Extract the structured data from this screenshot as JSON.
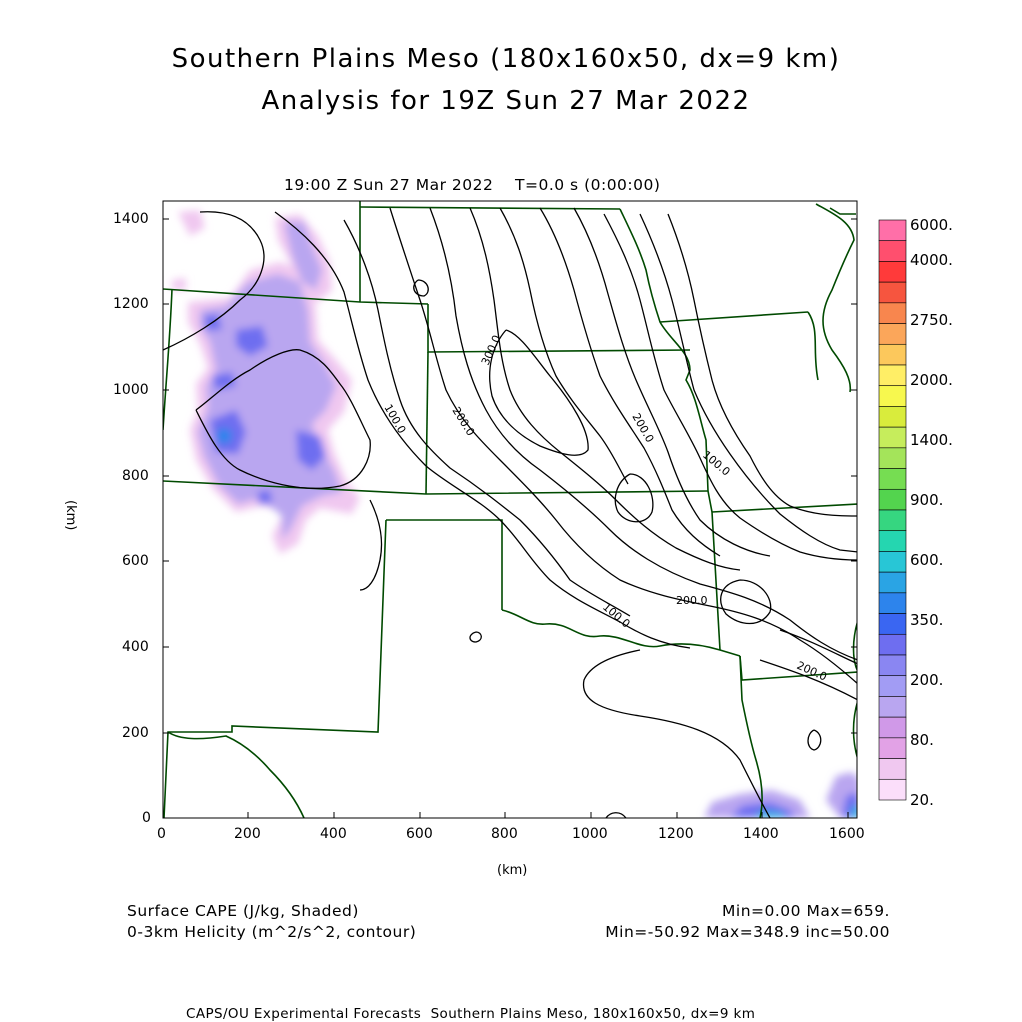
{
  "header": {
    "title_line1": "Southern Plains Meso (180x160x50, dx=9 km)",
    "title_line2": "Analysis for 19Z Sun 27 Mar 2022",
    "valid_time": "19:00 Z Sun 27 Mar 2022    T=0.0 s (0:00:00)"
  },
  "axes": {
    "x_label": "(km)",
    "y_label": "(km)",
    "x_ticks": [
      "0",
      "200",
      "400",
      "600",
      "800",
      "1000",
      "1200",
      "1400",
      "1600"
    ],
    "y_ticks": [
      "0",
      "200",
      "400",
      "600",
      "800",
      "1000",
      "1200",
      "1400"
    ],
    "x_range_km": [
      0,
      1620
    ],
    "y_range_km": [
      0,
      1440
    ]
  },
  "colorbar": {
    "labels": [
      "6000.",
      "4000.",
      "2750.",
      "2000.",
      "1400.",
      "900.",
      "600.",
      "350.",
      "200.",
      "80.",
      "20."
    ],
    "colors_top_to_bottom": [
      "#ff6fa8",
      "#ff4f6e",
      "#ff3a3a",
      "#f6553f",
      "#f8864e",
      "#fba65a",
      "#fcc85c",
      "#ffee66",
      "#f7f84e",
      "#d9ec3c",
      "#c6ed5c",
      "#a4e45a",
      "#76dd52",
      "#53d44e",
      "#36d680",
      "#25d6b0",
      "#28c6d6",
      "#2aa4e4",
      "#2d84ec",
      "#3a66f2",
      "#6e6ef0",
      "#8a86f2",
      "#a29cf4",
      "#b9a6f0",
      "#d099e8",
      "#e2a2e6",
      "#f0c8f0",
      "#fbdefa"
    ]
  },
  "footer": {
    "field1": "Surface CAPE (J/kg, Shaded)",
    "field2": "0-3km Helicity (m^2/s^2, contour)",
    "stats1": "Min=0.00 Max=659.",
    "stats2": "Min=-50.92 Max=348.9 inc=50.00",
    "credit": "CAPS/OU Experimental Forecasts  Southern Plains Meso, 180x160x50, dx=9 km"
  },
  "contour_labels": [
    "100.0",
    "200.0",
    "300.0",
    "200.0",
    "100.0",
    "100.0",
    "200.0",
    "200.0"
  ],
  "colors": {
    "boundary": "#004a00",
    "contour": "#000000",
    "cape_light": "#f0c8f0",
    "cape_mid": "#b9a6f0",
    "cape_dark": "#6e6ef0",
    "cape_blue": "#2aa4e4"
  }
}
